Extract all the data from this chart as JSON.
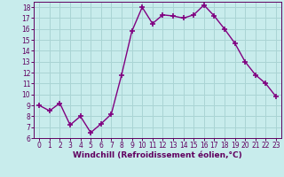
{
  "hours": [
    0,
    1,
    2,
    3,
    4,
    5,
    6,
    7,
    8,
    9,
    10,
    11,
    12,
    13,
    14,
    15,
    16,
    17,
    18,
    19,
    20,
    21,
    22,
    23
  ],
  "values": [
    9.0,
    8.5,
    9.2,
    7.2,
    8.0,
    6.5,
    7.3,
    8.2,
    11.8,
    15.8,
    18.0,
    16.5,
    17.3,
    17.2,
    17.0,
    17.3,
    18.2,
    17.2,
    16.0,
    14.7,
    13.0,
    11.8,
    11.0,
    9.8
  ],
  "line_color": "#800080",
  "marker": "+",
  "marker_size": 4,
  "bg_color": "#c8ecec",
  "grid_color": "#aad4d4",
  "xlabel": "Windchill (Refroidissement éolien,°C)",
  "xlim": [
    -0.5,
    23.5
  ],
  "ylim": [
    6,
    18.5
  ],
  "yticks": [
    6,
    7,
    8,
    9,
    10,
    11,
    12,
    13,
    14,
    15,
    16,
    17,
    18
  ],
  "xticks": [
    0,
    1,
    2,
    3,
    4,
    5,
    6,
    7,
    8,
    9,
    10,
    11,
    12,
    13,
    14,
    15,
    16,
    17,
    18,
    19,
    20,
    21,
    22,
    23
  ],
  "tick_fontsize": 5.5,
  "xlabel_fontsize": 6.5,
  "line_width": 1.0,
  "spine_color": "#600060",
  "text_color": "#600060"
}
